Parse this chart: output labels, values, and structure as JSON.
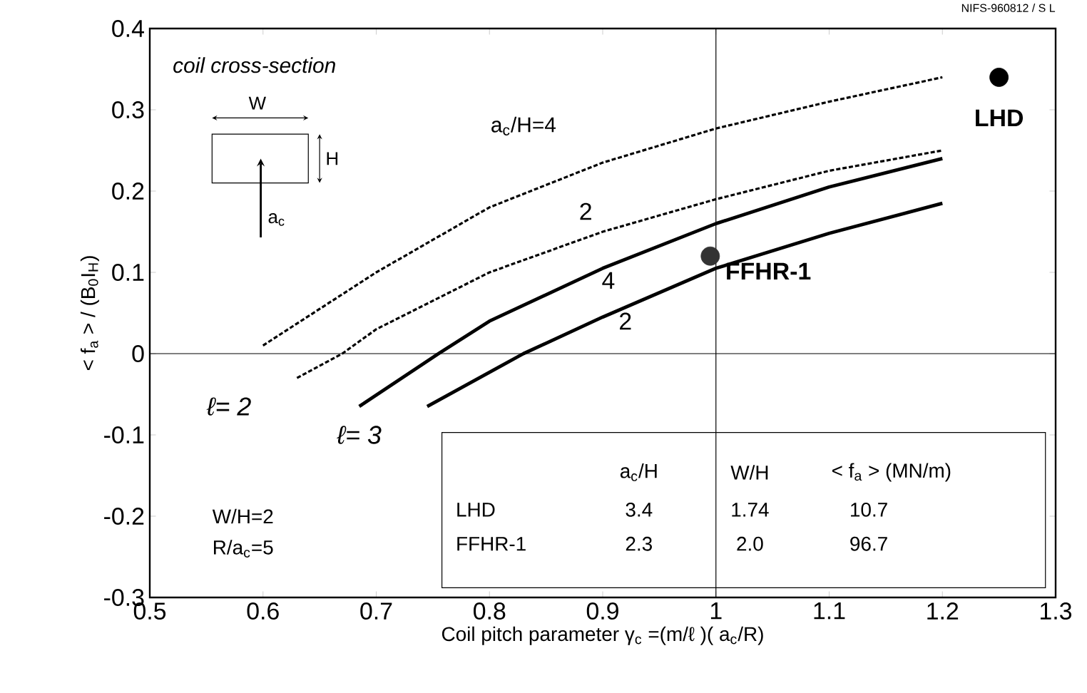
{
  "chart_data": {
    "type": "line",
    "xlabel": "Coil pitch parameter  γ$_{c}$ =(m/ℓ )( a$_{c}$/R)",
    "ylabel": "< f$_{a}$ > / (B$_{0}$I$_{H}$)",
    "xlim": [
      0.5,
      1.3
    ],
    "xticks": [
      0.5,
      0.6,
      0.7,
      0.8,
      0.9,
      1,
      1.1,
      1.2,
      1.3
    ],
    "ylim": [
      -0.3,
      0.4
    ],
    "yticks": [
      -0.3,
      -0.2,
      -0.1,
      0,
      0.1,
      0.2,
      0.3,
      0.4
    ],
    "grid": false,
    "series": [
      {
        "name": "a$_{c}$/H=4",
        "color": "#000000",
        "line_style": "dashed",
        "x": [
          0.6,
          0.7,
          0.8,
          0.9,
          1.0,
          1.1,
          1.2
        ],
        "values": [
          0.01,
          0.1,
          0.18,
          0.235,
          0.277,
          0.31,
          0.34
        ]
      },
      {
        "name": "2",
        "color": "#000000",
        "line_style": "dashed",
        "x": [
          0.63,
          0.67,
          0.7,
          0.8,
          0.9,
          1.0,
          1.1,
          1.2
        ],
        "values": [
          -0.03,
          0.0,
          0.03,
          0.1,
          0.15,
          0.19,
          0.225,
          0.25
        ]
      },
      {
        "name": "4",
        "color": "#000000",
        "line_style": "solid",
        "x": [
          0.685,
          0.755,
          0.8,
          0.9,
          1.0,
          1.1,
          1.2
        ],
        "values": [
          -0.065,
          0.0,
          0.04,
          0.105,
          0.16,
          0.205,
          0.24
        ]
      },
      {
        "name": "2",
        "color": "#000000",
        "line_style": "solid",
        "x": [
          0.745,
          0.83,
          0.9,
          1.0,
          1.1,
          1.2
        ],
        "values": [
          -0.065,
          0.0,
          0.045,
          0.105,
          0.148,
          0.185
        ]
      },
      {
        "name": "LHD",
        "type": "scatter",
        "color": "#000000",
        "x": [
          1.25
        ],
        "values": [
          0.34
        ]
      },
      {
        "name": "FFHR-1",
        "type": "scatter",
        "color": "#333333",
        "x": [
          0.995
        ],
        "values": [
          0.12
        ]
      }
    ],
    "ref_lines": [
      {
        "axis": "y",
        "value": 0
      },
      {
        "axis": "x",
        "value": 1
      }
    ],
    "annotations": [
      "NIFS-960812 / S L",
      "coil cross-section",
      "W",
      "H",
      "a$_{c}$",
      "ℓ= 2",
      "ℓ= 3",
      "W/H=2",
      "R/a$_{c}$=5",
      "a$_{c}$/H",
      "W/H",
      "< f$_{a}$ > (MN/m)",
      "LHD",
      "3.4",
      "1.74",
      "10.7",
      "FFHR-1",
      "2.3",
      "2.0",
      "96.7"
    ]
  }
}
